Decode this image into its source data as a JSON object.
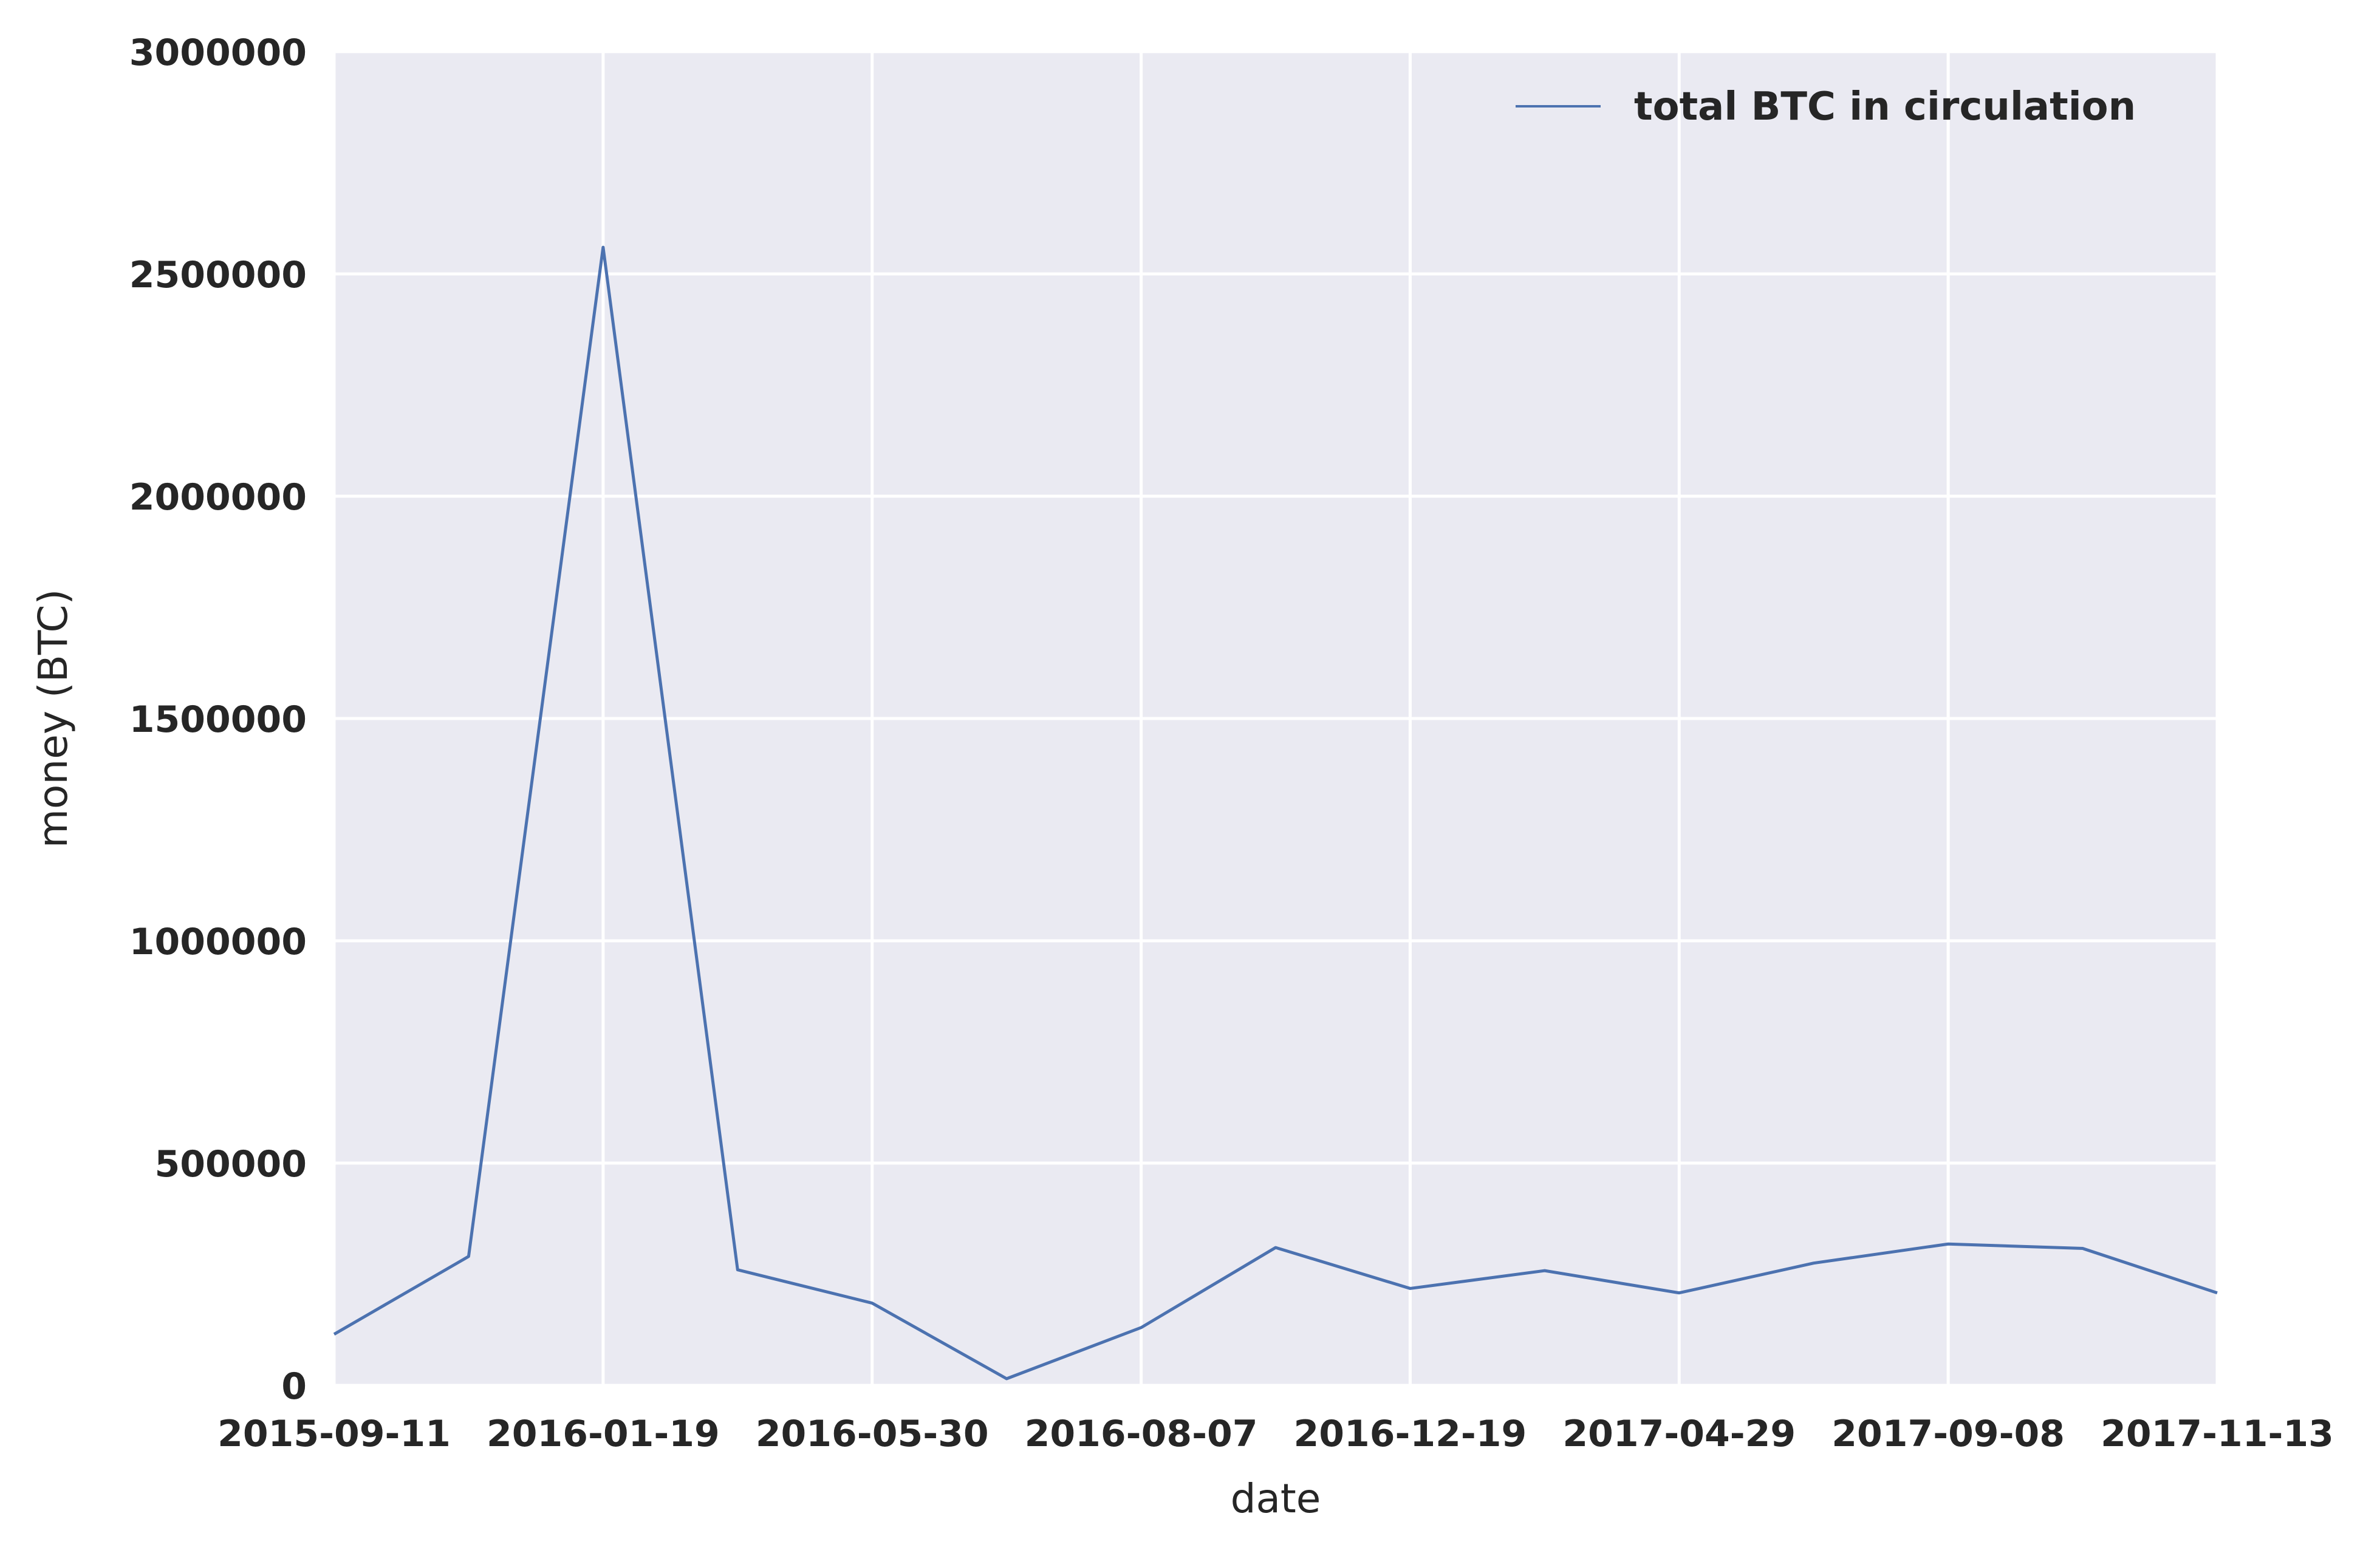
{
  "chart_data": {
    "type": "line",
    "title": "",
    "xlabel": "date",
    "ylabel": "money (BTC)",
    "ylim": [
      0,
      3000000
    ],
    "y_ticks": [
      0,
      500000,
      1000000,
      1500000,
      2000000,
      2500000,
      3000000
    ],
    "y_tick_labels": [
      "0",
      "500000",
      "1000000",
      "1500000",
      "2000000",
      "2500000",
      "3000000"
    ],
    "x_tick_labels": [
      "2015-09-11",
      "2016-01-19",
      "2016-05-30",
      "2016-08-07",
      "2016-12-19",
      "2017-04-29",
      "2017-09-08",
      "2017-11-13"
    ],
    "x_tick_positions": [
      0,
      2,
      4,
      6,
      8,
      10,
      12,
      14
    ],
    "xlim": [
      0,
      14
    ],
    "grid": true,
    "legend_position": "top-right",
    "series": [
      {
        "name": "total BTC in circulation",
        "color": "#4c72b0",
        "x": [
          0,
          1,
          2,
          3,
          4,
          5,
          6,
          7,
          8,
          9,
          10,
          11,
          12,
          13,
          14
        ],
        "values": [
          115000,
          290000,
          2560000,
          260000,
          185000,
          15000,
          130000,
          310000,
          218000,
          258000,
          208000,
          275000,
          318000,
          308000,
          208000
        ]
      }
    ]
  },
  "colors": {
    "plot_background": "#eaeaf2",
    "grid": "#ffffff",
    "text": "#262626"
  }
}
